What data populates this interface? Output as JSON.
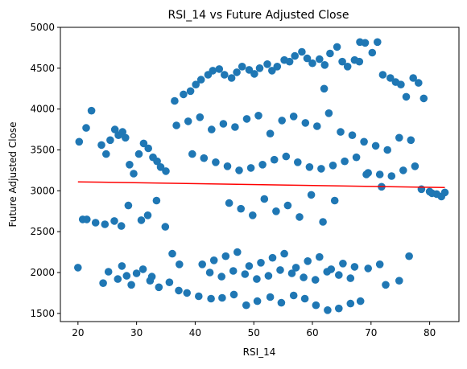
{
  "chart_data": {
    "type": "scatter",
    "title": "RSI_14 vs Future Adjusted Close",
    "xlabel": "RSI_14",
    "ylabel": "Future Adjusted Close",
    "xlim": [
      17,
      85
    ],
    "ylim": [
      1400,
      5000
    ],
    "xticks": [
      20,
      30,
      40,
      50,
      60,
      70,
      80
    ],
    "yticks": [
      1500,
      2000,
      2500,
      3000,
      3500,
      4000,
      4500,
      5000
    ],
    "grid": false,
    "series": [
      {
        "kind": "scatter",
        "color": "#1f77b4",
        "x": [
          20.2,
          21.4,
          22.3,
          20.8,
          24.0,
          24.8,
          25.5,
          26.3,
          26.9,
          27.6,
          28.1,
          28.8,
          29.5,
          30.4,
          31.2,
          32.0,
          32.8,
          33.5,
          34.1,
          35.0,
          20.0,
          24.3,
          25.2,
          26.8,
          27.5,
          28.3,
          29.1,
          30.0,
          31.1,
          32.3,
          21.5,
          23.0,
          24.6,
          26.2,
          27.4,
          28.6,
          30.8,
          31.9,
          33.4,
          34.9,
          36.1,
          37.3,
          36.5,
          38.0,
          39.2,
          40.1,
          41.0,
          42.2,
          43.0,
          44.1,
          45.0,
          46.2,
          47.1,
          48.0,
          49.2,
          50.1,
          51.0,
          52.3,
          53.1,
          54.0,
          55.2,
          56.1,
          57.0,
          58.2,
          59.1,
          60.0,
          61.2,
          62.1,
          63.0,
          64.2,
          65.1,
          66.0,
          67.2,
          68.1,
          69.0,
          70.2,
          71.1,
          72.0,
          73.3,
          74.2,
          75.1,
          76.0,
          77.2,
          78.1,
          79.0,
          80.0,
          81.2,
          82.0,
          82.6,
          80.4,
          78.6,
          76.5,
          74.8,
          72.5,
          71.5,
          69.5,
          68.2,
          66.5,
          64.5,
          62.6,
          60.6,
          58.7,
          56.8,
          54.7,
          52.8,
          50.6,
          48.7,
          46.6,
          44.6,
          42.7,
          40.6,
          38.6,
          37.2,
          35.6,
          33.8,
          32.6,
          36.8,
          38.8,
          40.8,
          42.8,
          44.8,
          46.8,
          48.8,
          50.8,
          52.8,
          54.8,
          56.8,
          58.8,
          60.8,
          62.8,
          64.8,
          66.8,
          68.8,
          70.8,
          72.8,
          74.8,
          76.8,
          39.5,
          41.5,
          43.5,
          45.5,
          47.5,
          49.5,
          51.5,
          53.5,
          55.5,
          57.5,
          59.5,
          61.5,
          63.5,
          65.5,
          67.5,
          69.5,
          71.5,
          73.5,
          75.5,
          77.5,
          41.2,
          43.2,
          45.2,
          47.2,
          49.2,
          51.2,
          53.2,
          55.2,
          57.2,
          59.2,
          61.2,
          63.2,
          65.2,
          67.2,
          42.5,
          44.5,
          46.5,
          48.5,
          50.5,
          52.5,
          54.5,
          56.5,
          58.5,
          60.5,
          62.5,
          64.5,
          66.5,
          45.8,
          47.8,
          49.8,
          51.8,
          53.8,
          55.8,
          57.8,
          59.8,
          61.8,
          63.8,
          69.2,
          71.8,
          68.0,
          62.0
        ],
        "y": [
          3600,
          3770,
          3980,
          2650,
          3560,
          3450,
          3620,
          3750,
          3680,
          3720,
          3650,
          3320,
          3210,
          3450,
          3580,
          3520,
          3410,
          3360,
          3290,
          3240,
          2060,
          1870,
          2010,
          1920,
          2080,
          1960,
          1850,
          1990,
          2040,
          1900,
          2650,
          2610,
          2590,
          2630,
          2570,
          2820,
          2640,
          2700,
          2880,
          2560,
          2230,
          2100,
          4100,
          4180,
          4220,
          4300,
          4360,
          4420,
          4470,
          4490,
          4420,
          4380,
          4450,
          4520,
          4480,
          4430,
          4500,
          4550,
          4470,
          4520,
          4600,
          4580,
          4650,
          4700,
          4620,
          4560,
          4610,
          4540,
          4680,
          4760,
          4580,
          4520,
          4600,
          4820,
          4810,
          4690,
          4820,
          4420,
          4380,
          4330,
          4300,
          4150,
          4380,
          4320,
          4130,
          2990,
          2960,
          2930,
          2980,
          2970,
          3020,
          2200,
          1900,
          1850,
          2100,
          2050,
          1650,
          1620,
          1560,
          1540,
          1600,
          1680,
          1720,
          1630,
          1700,
          1650,
          1600,
          1730,
          1690,
          1680,
          1710,
          1750,
          1780,
          1880,
          1820,
          1950,
          3800,
          3850,
          3900,
          3750,
          3820,
          3780,
          3880,
          3920,
          3700,
          3860,
          3910,
          3830,
          3790,
          3950,
          3720,
          3680,
          3600,
          3550,
          3500,
          3650,
          3620,
          3450,
          3400,
          3350,
          3300,
          3250,
          3280,
          3320,
          3380,
          3420,
          3350,
          3290,
          3270,
          3310,
          3360,
          3410,
          3220,
          3200,
          3180,
          3250,
          3300,
          2100,
          2150,
          2200,
          2250,
          2080,
          2120,
          2180,
          2230,
          2060,
          2140,
          2190,
          2040,
          2110,
          2070,
          2000,
          1950,
          2020,
          1980,
          1920,
          1960,
          2030,
          1990,
          1940,
          1910,
          2010,
          1970,
          1930,
          2850,
          2780,
          2700,
          2900,
          2750,
          2820,
          2680,
          2950,
          2620,
          2880,
          3200,
          3050,
          4580,
          4250
        ]
      },
      {
        "kind": "line",
        "color": "#ff0000",
        "x": [
          20.0,
          82.6
        ],
        "y": [
          3110,
          3040
        ]
      }
    ]
  }
}
